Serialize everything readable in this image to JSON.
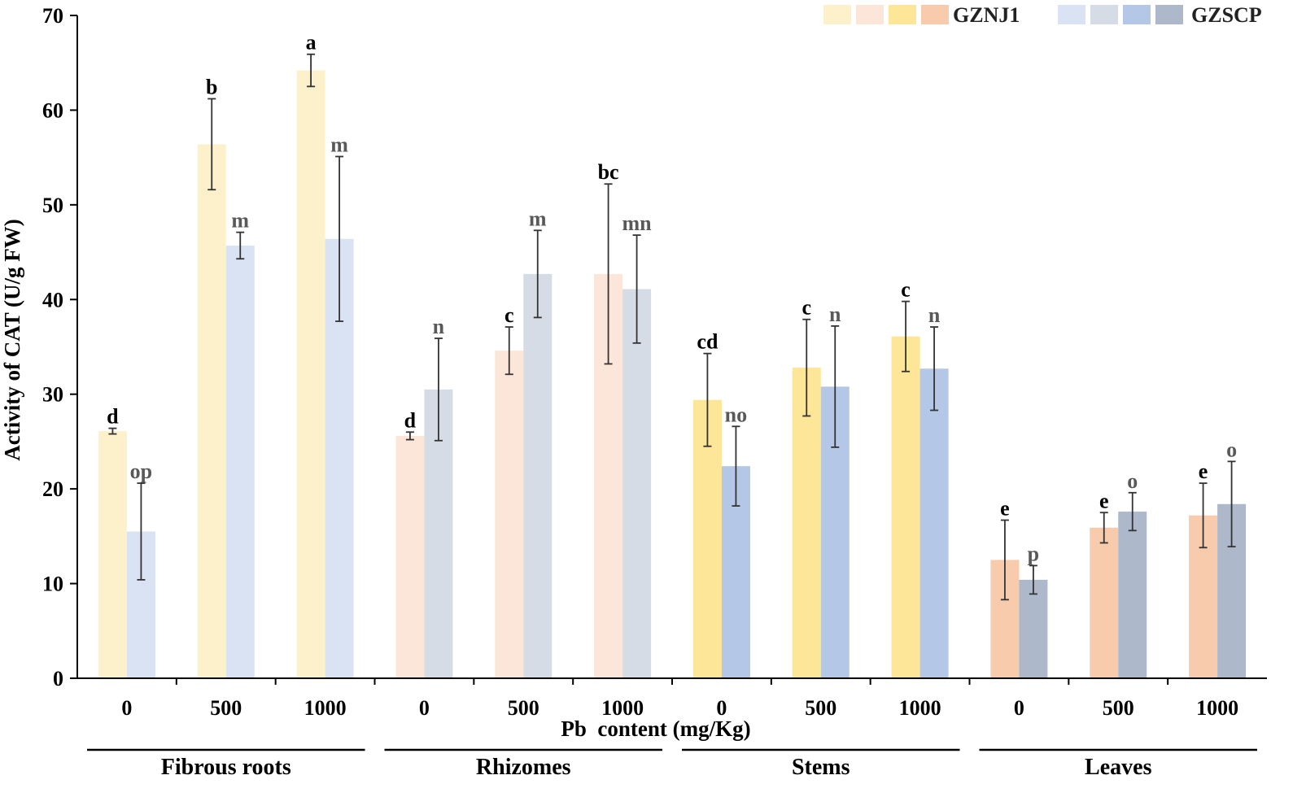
{
  "chart_data": {
    "type": "bar",
    "ylabel": "Activity of CAT (U/g FW)",
    "xlabel": "Pb  content (mg/Kg)",
    "ylim": [
      0,
      70
    ],
    "yticks": [
      0,
      10,
      20,
      30,
      40,
      50,
      60,
      70
    ],
    "legend": {
      "position": "top-right",
      "entries": [
        {
          "name": "GZNJ1",
          "swatches": [
            "#FDF1CC",
            "#FCE5D9",
            "#FEE699",
            "#F8CBAD"
          ]
        },
        {
          "name": "GZSCP",
          "swatches": [
            "#DAE3F3",
            "#D6DCE5",
            "#B4C7E7",
            "#ADB9CA"
          ]
        }
      ]
    },
    "groups": [
      {
        "name": "Fibrous roots",
        "colors": {
          "GZNJ1": "#FDF1CC",
          "GZSCP": "#DAE3F3"
        },
        "categories": [
          "0",
          "500",
          "1000"
        ],
        "series": [
          {
            "name": "GZNJ1",
            "values": [
              26.1,
              56.4,
              64.2
            ],
            "errors": [
              0.3,
              4.8,
              1.7
            ],
            "letters": [
              "d",
              "b",
              "a"
            ]
          },
          {
            "name": "GZSCP",
            "values": [
              15.5,
              45.7,
              46.4
            ],
            "errors": [
              5.1,
              1.4,
              8.7
            ],
            "letters": [
              "op",
              "m",
              "m"
            ]
          }
        ]
      },
      {
        "name": "Rhizomes",
        "colors": {
          "GZNJ1": "#FCE5D9",
          "GZSCP": "#D6DCE5"
        },
        "categories": [
          "0",
          "500",
          "1000"
        ],
        "series": [
          {
            "name": "GZNJ1",
            "values": [
              25.6,
              34.6,
              42.7
            ],
            "errors": [
              0.4,
              2.5,
              9.5
            ],
            "letters": [
              "d",
              "c",
              "bc"
            ]
          },
          {
            "name": "GZSCP",
            "values": [
              30.5,
              42.7,
              41.1
            ],
            "errors": [
              5.4,
              4.6,
              5.7
            ],
            "letters": [
              "n",
              "m",
              "mn"
            ]
          }
        ]
      },
      {
        "name": "Stems",
        "colors": {
          "GZNJ1": "#FEE699",
          "GZSCP": "#B4C7E7"
        },
        "categories": [
          "0",
          "500",
          "1000"
        ],
        "series": [
          {
            "name": "GZNJ1",
            "values": [
              29.4,
              32.8,
              36.1
            ],
            "errors": [
              4.9,
              5.1,
              3.7
            ],
            "letters": [
              "cd",
              "c",
              "c"
            ]
          },
          {
            "name": "GZSCP",
            "values": [
              22.4,
              30.8,
              32.7
            ],
            "errors": [
              4.2,
              6.4,
              4.4
            ],
            "letters": [
              "no",
              "n",
              "n"
            ]
          }
        ]
      },
      {
        "name": "Leaves",
        "colors": {
          "GZNJ1": "#F8CBAD",
          "GZSCP": "#ADB9CA"
        },
        "categories": [
          "0",
          "500",
          "1000"
        ],
        "series": [
          {
            "name": "GZNJ1",
            "values": [
              12.5,
              15.9,
              17.2
            ],
            "errors": [
              4.2,
              1.6,
              3.4
            ],
            "letters": [
              "e",
              "e",
              "e"
            ]
          },
          {
            "name": "GZSCP",
            "values": [
              10.4,
              17.6,
              18.4
            ],
            "errors": [
              1.5,
              2.0,
              4.5
            ],
            "letters": [
              "p",
              "o",
              "o"
            ]
          }
        ]
      }
    ]
  }
}
